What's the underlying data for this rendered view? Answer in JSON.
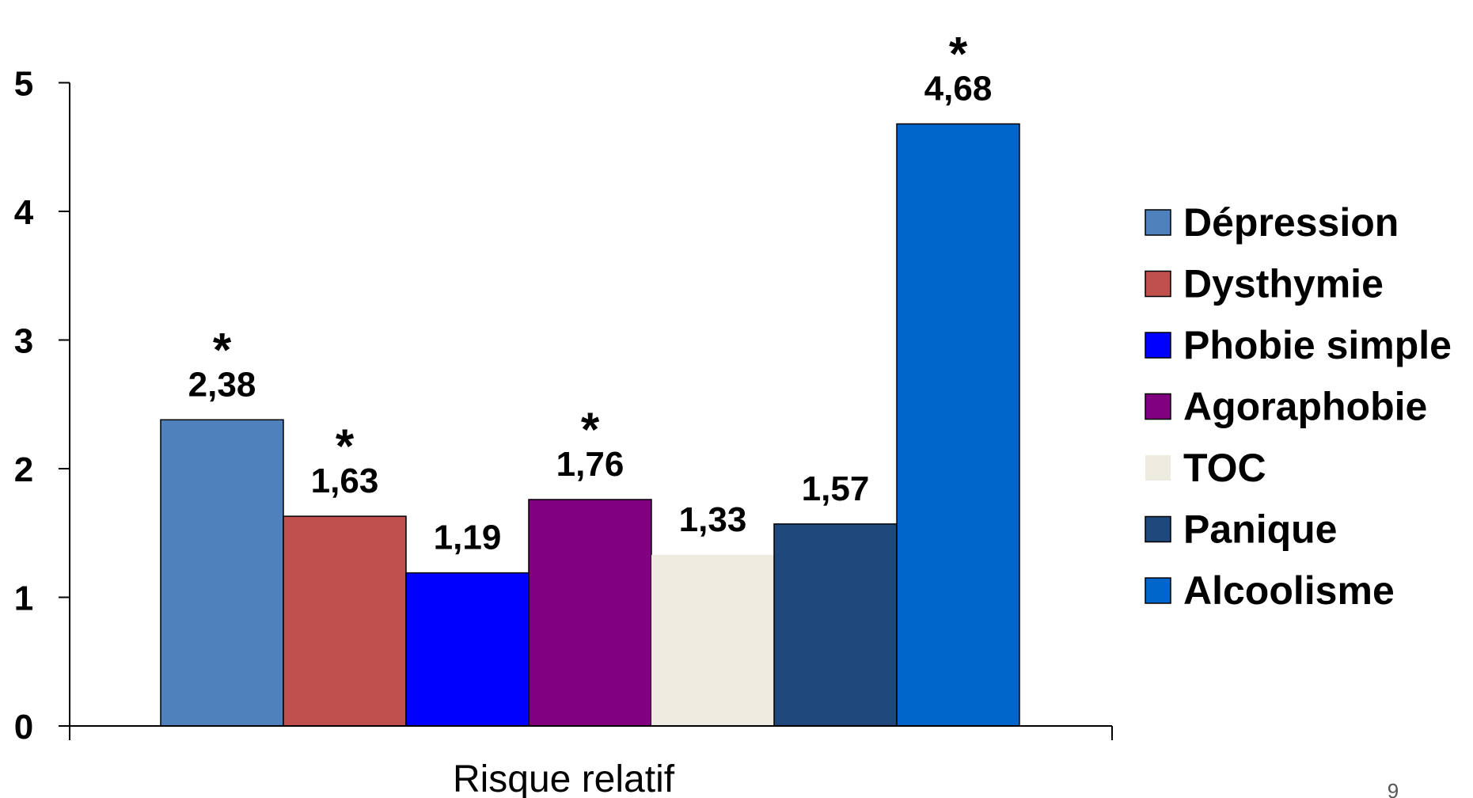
{
  "chart_data": {
    "type": "bar",
    "title": "",
    "xlabel": "Risque relatif",
    "ylabel": "",
    "ylim": [
      0,
      5
    ],
    "yticks": [
      0,
      1,
      2,
      3,
      4,
      5
    ],
    "grid": false,
    "legend_position": "right",
    "categories": [
      "Risque relatif"
    ],
    "series": [
      {
        "name": "Dépression",
        "value": 2.38,
        "label": "2,38",
        "significant": true,
        "color": "#4F81BD"
      },
      {
        "name": "Dysthymie",
        "value": 1.63,
        "label": "1,63",
        "significant": true,
        "color": "#C0504D"
      },
      {
        "name": "Phobie simple",
        "value": 1.19,
        "label": "1,19",
        "significant": false,
        "color": "#0000FF"
      },
      {
        "name": "Agoraphobie",
        "value": 1.76,
        "label": "1,76",
        "significant": true,
        "color": "#800080"
      },
      {
        "name": "TOC",
        "value": 1.33,
        "label": "1,33",
        "significant": false,
        "color": "#EEECE1"
      },
      {
        "name": "Panique",
        "value": 1.57,
        "label": "1,57",
        "significant": false,
        "color": "#1F497D"
      },
      {
        "name": "Alcoolisme",
        "value": 4.68,
        "label": "4,68",
        "significant": true,
        "color": "#0066CC"
      }
    ],
    "significance_marker": "*"
  },
  "page_number": "9"
}
